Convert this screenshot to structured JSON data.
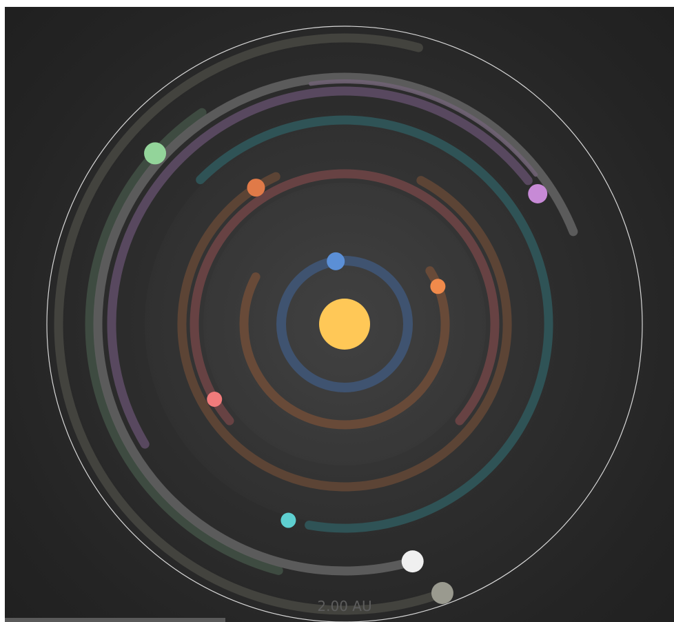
{
  "scale": {
    "label": "2.00 AU"
  },
  "star": {
    "color": "#ffc857"
  },
  "boundary": {
    "color": "#d8d8d8"
  },
  "bodies": [
    {
      "name": "planet-blue",
      "color": "#5b8fd6",
      "trail_color": "#3f5370",
      "orbit": 1
    },
    {
      "name": "planet-orange-small",
      "color": "#f08a4b",
      "trail_color": "#6a4b38",
      "orbit": 2
    },
    {
      "name": "planet-coral",
      "color": "#f07b7b",
      "trail_color": "#6a4344",
      "orbit": 3
    },
    {
      "name": "planet-orange",
      "color": "#e07a48",
      "trail_color": "#5f4636",
      "orbit": 4
    },
    {
      "name": "planet-cyan",
      "color": "#5ecfd0",
      "trail_color": "#2f5558",
      "orbit": 5
    },
    {
      "name": "planet-violet",
      "color": "#c78ad6",
      "trail_color": "#5b4a62",
      "orbit": 6
    },
    {
      "name": "planet-green",
      "color": "#93d49a",
      "trail_color": "#3f4d42",
      "orbit": 7
    },
    {
      "name": "planet-white",
      "color": "#f0f0f0",
      "trail_color": "#5e5e5e",
      "orbit": 8
    },
    {
      "name": "planet-grey",
      "color": "#9a9a8f",
      "trail_color": "#45453f",
      "orbit": 9
    }
  ]
}
